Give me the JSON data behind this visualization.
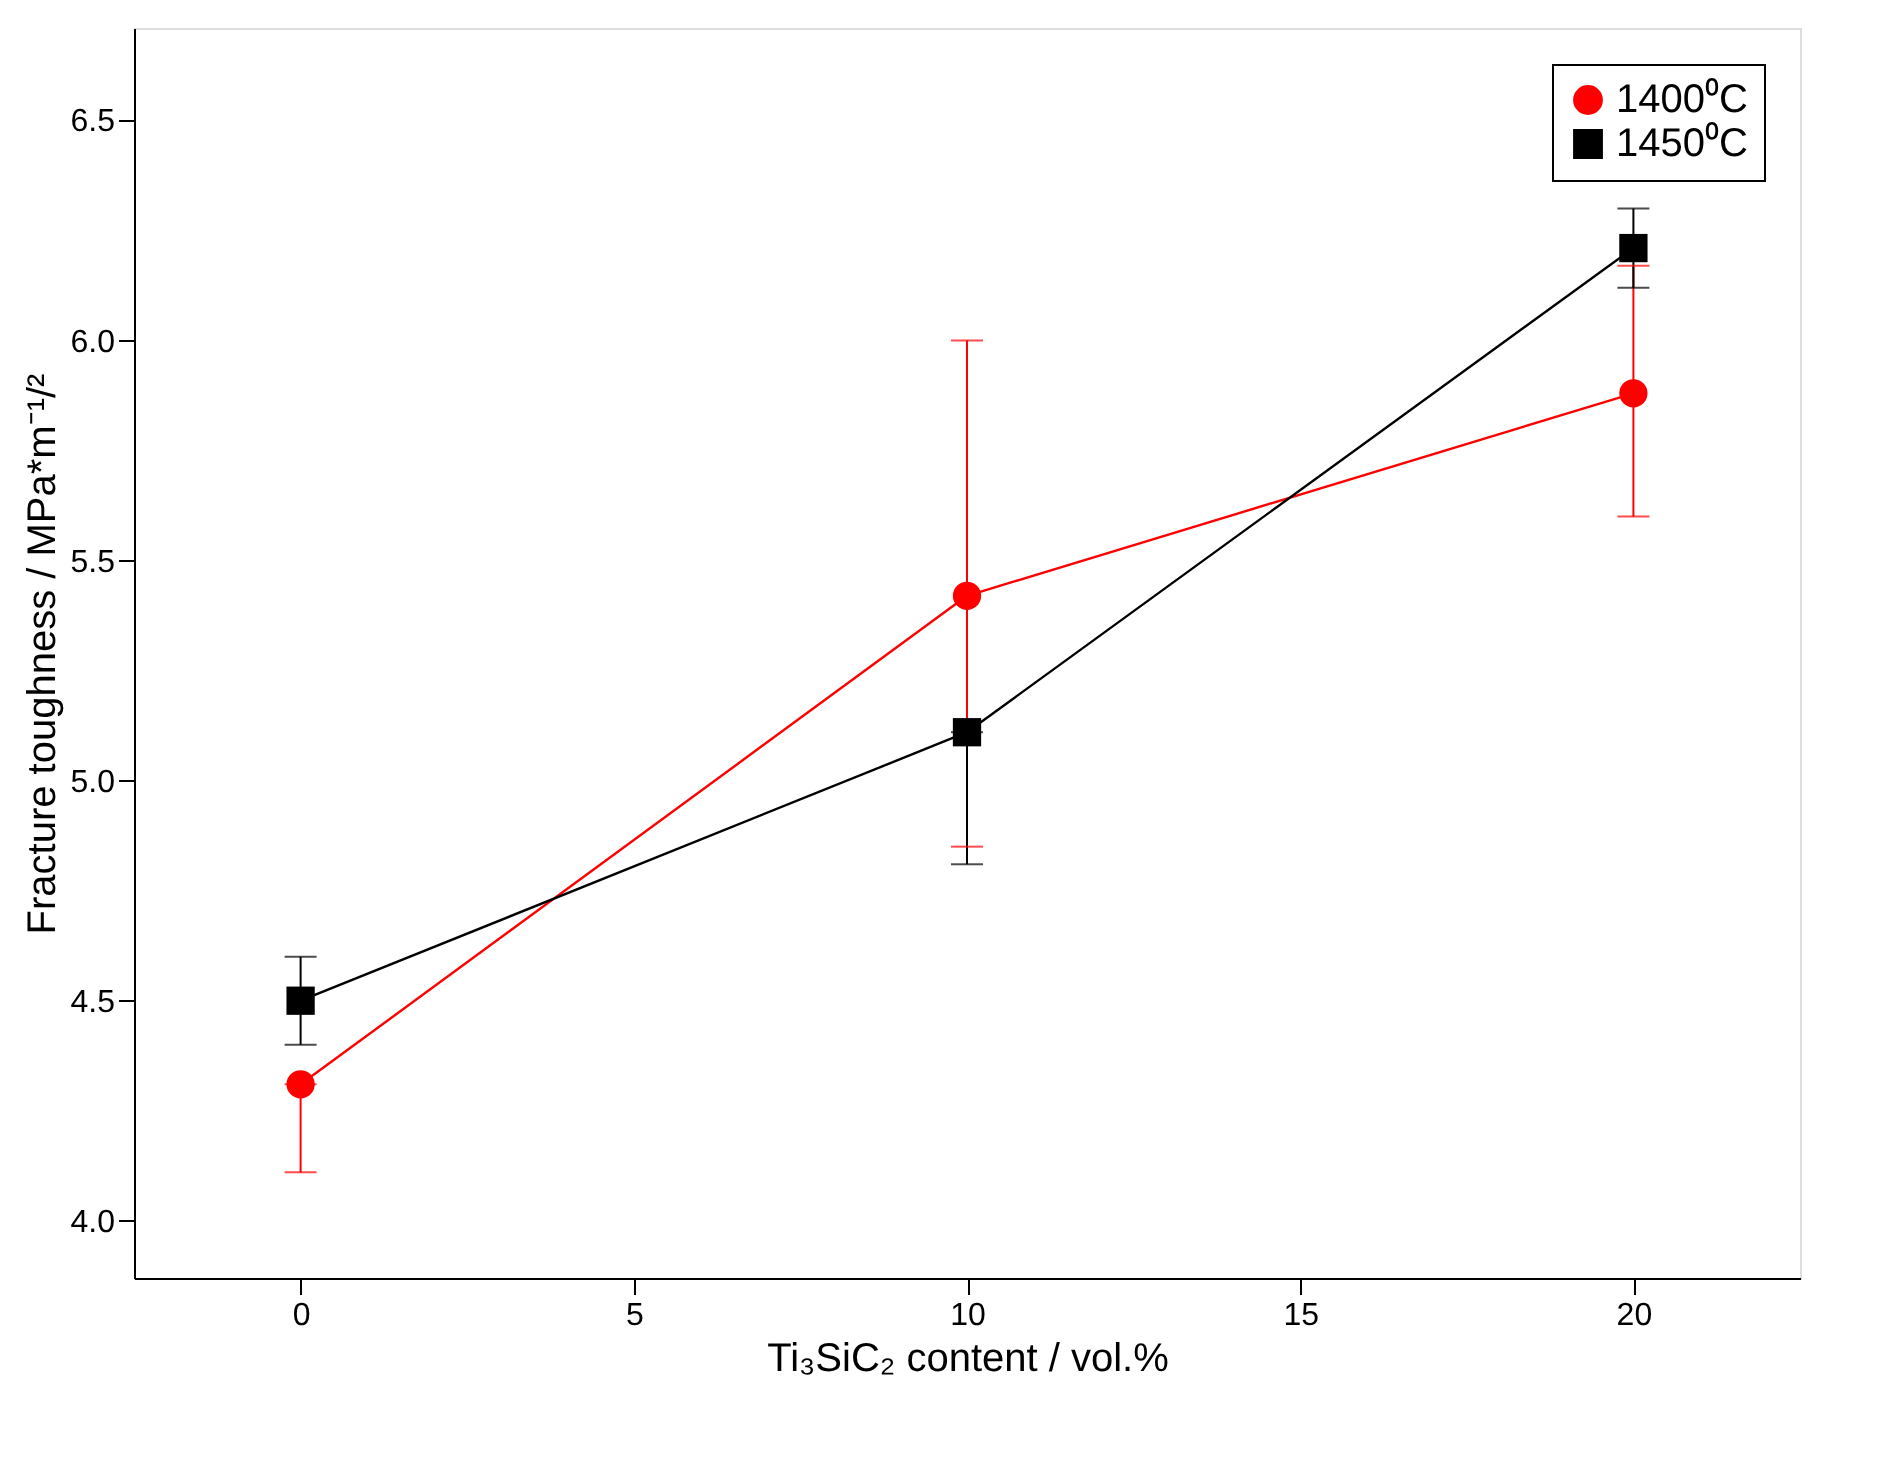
{
  "chart_data": {
    "type": "line",
    "xlabel": "Ti₃SiC₂ content / vol.%",
    "ylabel": "Fracture toughness / MPa*m⁻¹/²",
    "x": [
      0,
      10,
      20
    ],
    "series": [
      {
        "name": "1400⁰C",
        "color": "#ff0000",
        "marker": "circle",
        "values": [
          4.31,
          5.42,
          5.88
        ],
        "errors": [
          [
            4.11,
            4.31
          ],
          [
            4.85,
            6.0
          ],
          [
            5.6,
            6.17
          ]
        ]
      },
      {
        "name": "1450⁰C",
        "color": "#000000",
        "marker": "square",
        "values": [
          4.5,
          5.11,
          6.21
        ],
        "errors": [
          [
            4.4,
            4.6
          ],
          [
            4.81,
            5.11
          ],
          [
            6.12,
            6.3
          ]
        ]
      }
    ],
    "xlim": [
      -2.5,
      22.5
    ],
    "xticks": [
      0,
      5,
      10,
      15,
      20
    ],
    "ylim": [
      3.87,
      6.71
    ],
    "yticks": [
      {
        "value": 4,
        "label": "4.0"
      },
      4.5,
      {
        "value": 5,
        "label": "5.0"
      },
      5.5,
      {
        "value": 6,
        "label": "6.0"
      },
      6.5
    ],
    "grid": false,
    "legend": "top right"
  }
}
